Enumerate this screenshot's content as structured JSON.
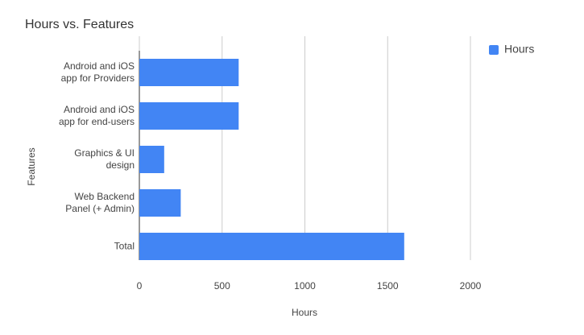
{
  "chart_data": {
    "type": "bar",
    "orientation": "horizontal",
    "title": "Hours vs. Features",
    "x_label": "Hours",
    "y_label": "Features",
    "categories": [
      "Android and iOS\napp for Providers",
      "Android and iOS\napp for end-users",
      "Graphics & UI\ndesign",
      "Web Backend\nPanel (+ Admin)",
      "Total"
    ],
    "series": [
      {
        "name": "Hours",
        "color": "#4285f4",
        "values": [
          600,
          600,
          150,
          250,
          1600
        ]
      }
    ],
    "xlim": [
      0,
      2000
    ],
    "xticks": [
      0,
      500,
      1000,
      1500,
      2000
    ],
    "grid": true,
    "legend": "top-right"
  }
}
